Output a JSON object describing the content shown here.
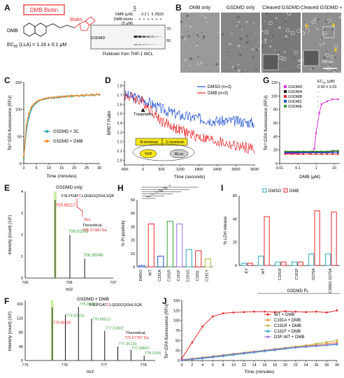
{
  "panels": {
    "A": {
      "letter": "A",
      "compound_box": "DMB-Biotin",
      "compound_name": "DMB",
      "biotin_label": "Biotin",
      "ec50": "EC",
      "ec50_sub": "50",
      "ec50_rest": " (LLA) = 1.16 ± 0.1 μM",
      "blot": {
        "rows": [
          {
            "label": "DMB (μM)",
            "values": [
              "-",
              "-",
              "0.2",
              "1",
              "5",
              "25",
              "125"
            ]
          },
          {
            "label": "DMB-biotin",
            "values": [
              "-",
              "+",
              "+",
              "+",
              "+",
              "+",
              "+"
            ]
          },
          {
            "label": "(5 μM)",
            "values": []
          }
        ],
        "lysate_label": "Lysate",
        "band_label": "GSDMD",
        "marker_70": "70",
        "marker_55": "55",
        "caption": "Pulldown from THP-1 WCL"
      }
    },
    "B": {
      "letter": "B",
      "titles": [
        "DMB only",
        "GSDMD only",
        "Cleaved GSDMD",
        "Cleaved GSDMD + DMB"
      ],
      "scale": "100 nm"
    },
    "C": {
      "letter": "C",
      "ylabel": "Tb³⁺/DPA fluorescence (RFU)",
      "xlabel": "Time (minutes)"
    },
    "D": {
      "letter": "D",
      "ylabel": "BRET Ratio",
      "xlabel": "Time (seconds)",
      "treatment": "Treatment",
      "n_term": "N-terminal",
      "c_term": "C-terminal",
      "yfp": "YFP",
      "rluc": "RLuc"
    },
    "E": {
      "letter": "E",
      "title": "GSDMD only",
      "peptide_pre": "FSLPGAT",
      "peptide_c": "C",
      "peptide_post": "LQGEGQGHLSQK",
      "peaks": [
        "705.68117",
        "706.01503",
        "706.35048"
      ],
      "theoretical": "Theoretical,",
      "theoretical_val": "705.67380 Da",
      "ylabel": "Intensity [count] (10⁶)",
      "xlabel": "m/z",
      "nh2": "NH₂"
    },
    "F": {
      "letter": "F",
      "title": "GSDMD + DMB",
      "peptide_pre": "FSLPGAT",
      "peptide_c": "C",
      "peptide_post": "LQGEGQGHLSQK",
      "peaks": [
        "775.68635",
        "776.02016",
        "776.35219",
        "776.68513",
        "777.01802",
        "777.35139",
        "777.68507",
        "778.01906"
      ],
      "theoretical": "Theoretical,",
      "theoretical_val": "775.67767 Da",
      "ylabel": "Intensity [count] (10³)",
      "xlabel": "m/z"
    },
    "G": {
      "letter": "G",
      "ec50_label": "EC",
      "ec50_sub": "50",
      "ec50_rest": " (μM)",
      "ylabel": "Tb³⁺/DPA fluorescence (RFU)",
      "xlabel": "DMB (μM)"
    },
    "H": {
      "letter": "H",
      "ylabel": "% PI positivity",
      "sig": [
        "****",
        "***",
        "***",
        "NS",
        "NS",
        "**"
      ]
    },
    "I": {
      "letter": "I",
      "ylabel": "% LDH release",
      "group_label": "GSDMD FL"
    },
    "J": {
      "letter": "J",
      "ylabel": "Tb³⁺/DPA fluorescence (RFU)",
      "xlabel": "Time (minutes)"
    }
  },
  "colors": {
    "red": "#e8262a",
    "blue": "#1f4fd1",
    "orange": "#f0882a",
    "teal": "#2aa7b9",
    "green": "#3a9a3a",
    "magenta": "#e334d8",
    "purple": "#9b6fd6",
    "olive": "#b8b33a"
  },
  "chart_data": [
    {
      "id": "C",
      "type": "line",
      "xlim": [
        0,
        30
      ],
      "ylim": [
        0,
        150
      ],
      "xticks": [
        0,
        5,
        10,
        15,
        20,
        25,
        30
      ],
      "yticks": [
        0,
        50,
        100,
        150
      ],
      "series": [
        {
          "name": "GSDMD + 3C",
          "color": "#2aa7b9",
          "x": [
            0,
            1,
            2,
            3,
            4,
            5,
            6,
            7,
            8,
            9,
            10,
            11,
            12,
            13,
            14,
            15,
            16,
            17,
            18,
            19,
            20,
            21,
            22,
            23,
            24,
            25,
            26,
            27,
            28,
            29,
            30
          ],
          "y": [
            10,
            60,
            85,
            100,
            108,
            112,
            116,
            118,
            119,
            120,
            121,
            122,
            121,
            123,
            122,
            124,
            123,
            124,
            125,
            124,
            125,
            126,
            125,
            126,
            125,
            127,
            126,
            127,
            126,
            128,
            127
          ]
        },
        {
          "name": "GSDMD + DMB",
          "color": "#f0882a",
          "x": [
            0,
            1,
            2,
            3,
            4,
            5,
            6,
            7,
            8,
            9,
            10,
            11,
            12,
            13,
            14,
            15,
            16,
            17,
            18,
            19,
            20,
            21,
            22,
            23,
            24,
            25,
            26,
            27,
            28,
            29,
            30
          ],
          "y": [
            12,
            70,
            92,
            104,
            110,
            114,
            117,
            118,
            120,
            121,
            122,
            121,
            123,
            122,
            124,
            123,
            124,
            125,
            124,
            126,
            125,
            126,
            125,
            127,
            126,
            127,
            126,
            128,
            127,
            128,
            128
          ]
        }
      ]
    },
    {
      "id": "D",
      "type": "line",
      "xlim": [
        -600,
        3600
      ],
      "ylim": [
        0.95,
        1.85
      ],
      "xticks": [
        -600,
        0,
        600,
        1200,
        1800,
        2400,
        3000,
        3600
      ],
      "yticks": [
        1.0,
        1.1,
        1.2,
        1.3,
        1.4,
        1.5,
        1.6,
        1.7,
        1.8
      ],
      "series": [
        {
          "name": "DMSO (n=3)",
          "color": "#1f4fd1",
          "x": [
            -600,
            0,
            600,
            1200,
            1800,
            2400,
            3000,
            3600
          ],
          "y": [
            1.7,
            1.65,
            1.55,
            1.48,
            1.45,
            1.42,
            1.42,
            1.4
          ]
        },
        {
          "name": "DMB (n=3)",
          "color": "#e8262a",
          "x": [
            -600,
            0,
            600,
            1200,
            1800,
            2400,
            3000,
            3600
          ],
          "y": [
            1.7,
            1.63,
            1.42,
            1.32,
            1.25,
            1.2,
            1.15,
            1.12
          ]
        }
      ]
    },
    {
      "id": "G",
      "type": "line",
      "xscale": "log",
      "xlim": [
        0.01,
        20
      ],
      "ylim": [
        0,
        120
      ],
      "xticks": [
        0.01,
        0.1,
        1,
        10
      ],
      "yticks": [
        0,
        20,
        40,
        60,
        80,
        100,
        120
      ],
      "series": [
        {
          "name": "GSDMD",
          "ec50": "0.90 ± 0.03",
          "color": "#e334d8",
          "x": [
            0.02,
            0.05,
            0.1,
            0.2,
            0.4,
            0.6,
            0.8,
            1.0,
            1.5,
            2,
            4,
            8,
            16
          ],
          "y": [
            15,
            15,
            15,
            16,
            16,
            17,
            22,
            45,
            75,
            88,
            92,
            95,
            95
          ]
        },
        {
          "name": "GSDMA",
          "ec50": "-",
          "color": "#111111",
          "x": [
            0.02,
            0.05,
            0.1,
            0.2,
            0.5,
            1,
            2,
            4,
            8,
            16
          ],
          "y": [
            17,
            17,
            17,
            17,
            17,
            17,
            17,
            17,
            18,
            18
          ]
        },
        {
          "name": "GSDMB",
          "ec50": "-",
          "color": "#e8262a",
          "x": [
            0.02,
            0.05,
            0.1,
            0.2,
            0.5,
            1,
            2,
            4,
            8,
            16
          ],
          "y": [
            14,
            14,
            14,
            14,
            14,
            14,
            14,
            14,
            14,
            14
          ]
        },
        {
          "name": "GSDMC",
          "ec50": "-",
          "color": "#1f4fd1",
          "x": [
            0.02,
            0.05,
            0.1,
            0.2,
            0.5,
            1,
            2,
            4,
            8,
            16
          ],
          "y": [
            16,
            16,
            16,
            16,
            16,
            16,
            16,
            16,
            16,
            16
          ]
        },
        {
          "name": "GSDME",
          "ec50": "-",
          "color": "#3a9a3a",
          "x": [
            0.02,
            0.05,
            0.1,
            0.2,
            0.5,
            1,
            2,
            4,
            8,
            16
          ],
          "y": [
            18,
            18,
            18,
            18,
            18,
            18,
            18,
            18,
            19,
            19
          ]
        }
      ]
    },
    {
      "id": "H",
      "type": "bar",
      "ylim": [
        0,
        50
      ],
      "yticks": [
        0,
        10,
        20,
        30,
        40,
        50
      ],
      "categories": [
        "DMSO",
        "WT",
        "C191A",
        "C191R",
        "C191F",
        "C191G",
        "C191L",
        "C191Y"
      ],
      "values": [
        1,
        32,
        8,
        34,
        32,
        13,
        12,
        6
      ],
      "colors": [
        "#1f4fd1",
        "#e8262a",
        "#1f4fd1",
        "#3a9a3a",
        "#9b6fd6",
        "#2aa7b9",
        "#e8262a",
        "#b8b33a"
      ]
    },
    {
      "id": "I",
      "type": "bar",
      "ylim": [
        0,
        60
      ],
      "yticks": [
        0,
        20,
        40,
        60
      ],
      "categories": [
        "EV",
        "WT",
        "C191R",
        "C191F",
        "D275A",
        "C268G D275A"
      ],
      "series": [
        {
          "name": "DMSO",
          "color": "#2aa7b9",
          "values": [
            2,
            8,
            3,
            3,
            10,
            10
          ]
        },
        {
          "name": "DMB",
          "color": "#e8262a",
          "values": [
            2,
            42,
            3,
            3,
            47,
            46
          ]
        }
      ]
    },
    {
      "id": "J",
      "type": "line",
      "xlim": [
        0,
        30
      ],
      "ylim": [
        0,
        150
      ],
      "xticks": [
        0,
        2,
        4,
        6,
        8,
        10,
        12,
        14,
        16,
        18,
        20,
        22,
        24,
        26,
        28,
        30
      ],
      "yticks": [
        0,
        25,
        50,
        75,
        100,
        125,
        150
      ],
      "series": [
        {
          "name": "WT + DMB",
          "color": "#e8262a",
          "x": [
            0,
            2,
            4,
            6,
            8,
            10,
            12,
            14,
            16,
            18,
            20,
            22,
            24,
            26,
            28,
            30
          ],
          "y": [
            5,
            45,
            85,
            110,
            118,
            120,
            121,
            122,
            122,
            121,
            123,
            122,
            121,
            122,
            120,
            125
          ]
        },
        {
          "name": "C191A + DMB",
          "color": "#f0882a",
          "x": [
            0,
            2,
            4,
            6,
            8,
            10,
            12,
            14,
            16,
            18,
            20,
            22,
            24,
            26,
            28,
            30
          ],
          "y": [
            2,
            4,
            6,
            9,
            12,
            15,
            18,
            21,
            24,
            27,
            30,
            33,
            36,
            39,
            42,
            45
          ]
        },
        {
          "name": "C191R + DMB",
          "color": "#b8b33a",
          "x": [
            0,
            2,
            4,
            6,
            8,
            10,
            12,
            14,
            16,
            18,
            20,
            22,
            24,
            26,
            28,
            30
          ],
          "y": [
            2,
            5,
            8,
            11,
            14,
            17,
            20,
            23,
            26,
            29,
            32,
            35,
            38,
            42,
            46,
            50
          ]
        },
        {
          "name": "C191F + DMB",
          "color": "#1f9fc9",
          "x": [
            0,
            2,
            4,
            6,
            8,
            10,
            12,
            14,
            16,
            18,
            20,
            22,
            24,
            26,
            28,
            30
          ],
          "y": [
            1,
            3,
            5,
            8,
            11,
            14,
            17,
            20,
            23,
            26,
            29,
            32,
            34,
            36,
            38,
            40
          ]
        },
        {
          "name": "DSF-WT + DMB",
          "color": "#9b6fd6",
          "x": [
            0,
            2,
            4,
            6,
            8,
            10,
            12,
            14,
            16,
            18,
            20,
            22,
            24,
            26,
            28,
            30
          ],
          "y": [
            2,
            4,
            7,
            10,
            13,
            16,
            19,
            22,
            25,
            28,
            31,
            33,
            35,
            37,
            39,
            42
          ]
        }
      ]
    }
  ]
}
